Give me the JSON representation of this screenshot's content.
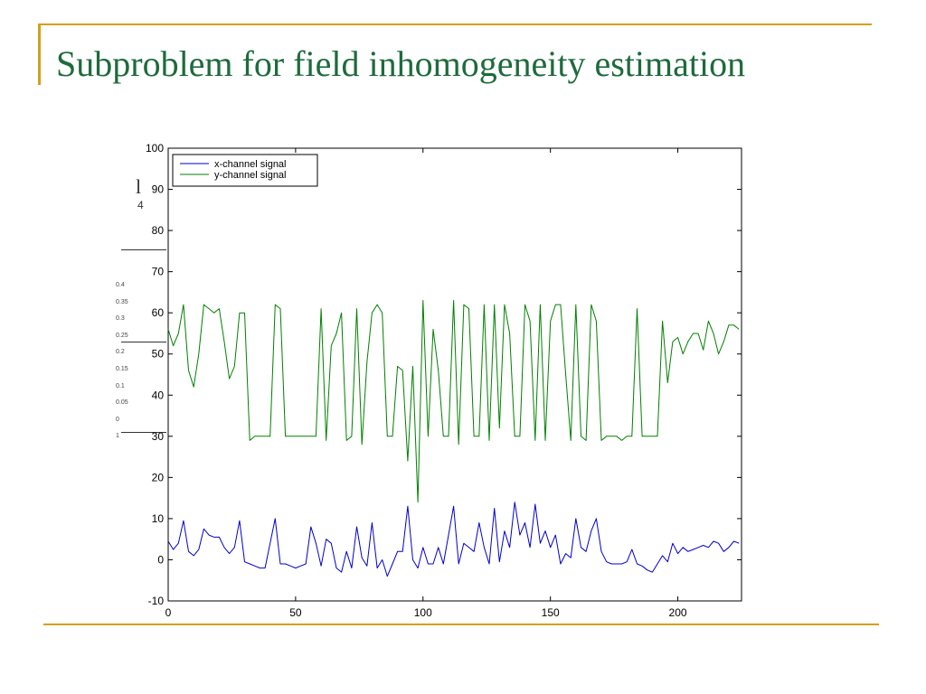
{
  "slide": {
    "title": "Subproblem for field inhomogeneity estimation",
    "behind_fragment_a": "l",
    "behind_fragment_b": "4",
    "behind_ticks": [
      "0.4",
      "0.35",
      "0.3",
      "0.25",
      "0.2",
      "0.15",
      "0.1",
      "0.05",
      "0",
      "1"
    ],
    "accent_color": "#d4a017",
    "title_color": "#1e6b3c"
  },
  "chart_data": {
    "type": "line",
    "title": "",
    "xlabel": "",
    "ylabel": "",
    "xlim": [
      0,
      225
    ],
    "ylim": [
      -10,
      100
    ],
    "xticks": [
      0,
      50,
      100,
      150,
      200
    ],
    "yticks": [
      -10,
      0,
      10,
      20,
      30,
      40,
      50,
      60,
      70,
      80,
      90,
      100
    ],
    "grid": false,
    "legend_position": "top-left",
    "series": [
      {
        "name": "x-channel signal",
        "color": "#0000cc",
        "x": [
          0,
          2,
          4,
          6,
          8,
          10,
          12,
          14,
          16,
          18,
          20,
          22,
          24,
          26,
          28,
          30,
          32,
          34,
          36,
          38,
          40,
          42,
          44,
          46,
          48,
          50,
          52,
          54,
          56,
          58,
          60,
          62,
          64,
          66,
          68,
          70,
          72,
          74,
          76,
          78,
          80,
          82,
          84,
          86,
          88,
          90,
          92,
          94,
          96,
          98,
          100,
          102,
          104,
          106,
          108,
          110,
          112,
          114,
          116,
          118,
          120,
          122,
          124,
          126,
          128,
          130,
          132,
          134,
          136,
          138,
          140,
          142,
          144,
          146,
          148,
          150,
          152,
          154,
          156,
          158,
          160,
          162,
          164,
          166,
          168,
          170,
          172,
          174,
          176,
          178,
          180,
          182,
          184,
          186,
          188,
          190,
          192,
          194,
          196,
          198,
          200,
          202,
          204,
          206,
          208,
          210,
          212,
          214,
          216,
          218,
          220,
          222,
          224
        ],
        "y": [
          4.5,
          2.5,
          4,
          9.5,
          2,
          1,
          2.5,
          7.5,
          6,
          5.5,
          5.5,
          3,
          1.5,
          3,
          9.5,
          -0.5,
          -1,
          -1.5,
          -2,
          -2,
          4,
          10,
          -1,
          -1,
          -1.5,
          -2,
          -1.5,
          -1,
          8,
          4,
          -1.5,
          5,
          4,
          -2,
          -3,
          2,
          -2,
          8,
          0.5,
          -1.5,
          9,
          -2,
          0,
          -4,
          -1,
          2,
          2,
          13,
          0,
          -2,
          3,
          -1,
          -1,
          3,
          -1,
          6,
          13,
          -1,
          4,
          3,
          2,
          9,
          3,
          -1,
          12.5,
          -0.5,
          7,
          3,
          14,
          6,
          9,
          3,
          13.5,
          4,
          7,
          3,
          6,
          -1,
          1.5,
          0.5,
          10,
          3,
          2,
          7,
          10,
          2,
          -0.5,
          -1,
          -1,
          -1,
          -0.5,
          2.5,
          -1,
          -1.5,
          -2.5,
          -3,
          -1,
          1,
          -0.5,
          4,
          1.5,
          3,
          2,
          2.5,
          3,
          3.5,
          3,
          4.5,
          4,
          2,
          3,
          4.5,
          4
        ]
      },
      {
        "name": "y-channel signal",
        "color": "#008000",
        "x": [
          0,
          2,
          4,
          6,
          8,
          10,
          12,
          14,
          16,
          18,
          20,
          22,
          24,
          26,
          28,
          30,
          32,
          34,
          36,
          38,
          40,
          42,
          44,
          46,
          48,
          50,
          52,
          54,
          56,
          58,
          60,
          62,
          64,
          66,
          68,
          70,
          72,
          74,
          76,
          78,
          80,
          82,
          84,
          86,
          88,
          90,
          92,
          94,
          96,
          98,
          100,
          102,
          104,
          106,
          108,
          110,
          112,
          114,
          116,
          118,
          120,
          122,
          124,
          126,
          128,
          130,
          132,
          134,
          136,
          138,
          140,
          142,
          144,
          146,
          148,
          150,
          152,
          154,
          156,
          158,
          160,
          162,
          164,
          166,
          168,
          170,
          172,
          174,
          176,
          178,
          180,
          182,
          184,
          186,
          188,
          190,
          192,
          194,
          196,
          198,
          200,
          202,
          204,
          206,
          208,
          210,
          212,
          214,
          216,
          218,
          220,
          222,
          224
        ],
        "y": [
          56,
          52,
          55,
          62,
          46,
          42,
          50,
          62,
          61,
          60,
          61,
          53,
          44,
          47,
          60,
          60,
          29,
          30,
          30,
          30,
          30,
          62,
          61,
          30,
          30,
          30,
          30,
          30,
          30,
          30,
          61,
          29,
          52,
          55,
          60,
          29,
          30,
          61,
          28,
          48,
          60,
          62,
          60,
          30,
          30,
          47,
          46,
          24,
          47,
          14,
          63,
          30,
          56,
          46,
          30,
          30,
          63,
          28,
          62,
          61,
          30,
          30,
          62,
          29,
          62,
          32,
          62,
          55,
          30,
          30,
          62,
          58,
          29,
          62,
          29,
          58,
          62,
          62,
          45,
          29,
          62,
          30,
          29,
          62,
          58,
          29,
          30,
          30,
          30,
          29,
          30,
          30,
          61,
          30,
          30,
          30,
          30,
          58,
          43,
          53,
          54,
          50,
          53,
          55,
          55,
          51,
          58,
          55,
          50,
          53,
          57,
          57,
          56
        ]
      }
    ]
  }
}
